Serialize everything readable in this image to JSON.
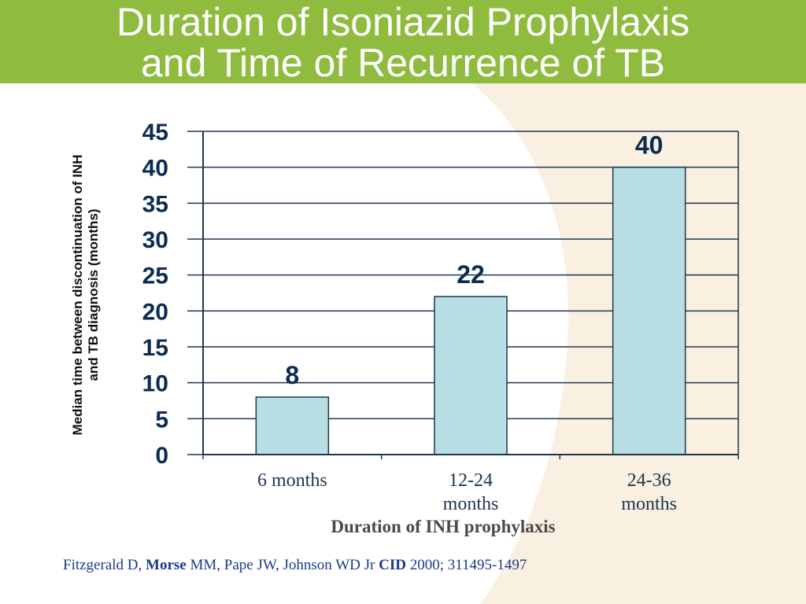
{
  "slide": {
    "title_line1": "Duration of Isoniazid Prophylaxis",
    "title_line2": "and Time of Recurrence of TB",
    "colors": {
      "header_green": "#8fbc3e",
      "cream": "#f9f0e1",
      "bar_fill": "#b8e0e4",
      "text_navy": "#0c2d50"
    }
  },
  "chart_data": {
    "type": "bar",
    "categories": [
      [
        "6 months"
      ],
      [
        "12-24",
        "months"
      ],
      [
        "24-36",
        "months"
      ]
    ],
    "values": [
      8,
      22,
      40
    ],
    "data_labels": [
      "8",
      "22",
      "40"
    ],
    "ylabel_lines": [
      "Median time between discontinuation of INH",
      "and TB diagnosis (months)"
    ],
    "xlabel": "Duration of INH prophylaxis",
    "ylim": [
      0,
      45
    ],
    "yticks": [
      0,
      5,
      10,
      15,
      20,
      25,
      30,
      35,
      40,
      45
    ],
    "grid": true
  },
  "citation": {
    "part1": "Fitzgerald D, ",
    "part2": "Morse",
    "part3": " MM, Pape JW, Johnson WD Jr ",
    "part4": "CID",
    "part5": " 2000; 311495-1497"
  }
}
